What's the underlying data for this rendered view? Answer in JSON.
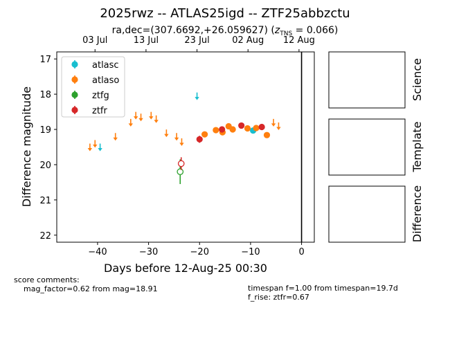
{
  "chart_data": {
    "type": "scatter",
    "title": "2025rwz -- ATLAS25igd -- ZTF25abbzctu",
    "subtitle_prefix": "ra,dec=(307.6692,+26.059627) (",
    "subtitle_math_base": "z",
    "subtitle_math_sub": "TNS",
    "subtitle_math_rest": " = 0.066)",
    "xlabel": "Days before 12-Aug-25 00:30",
    "ylabel": "Difference magnitude",
    "xlim": [
      -48,
      2.5
    ],
    "ylim": [
      22.2,
      16.8
    ],
    "x_ticks": [
      -40,
      -30,
      -20,
      -10,
      0
    ],
    "y_ticks": [
      17,
      18,
      19,
      20,
      21,
      22
    ],
    "top_axis_ticks": [
      {
        "x": -40.5,
        "label": "03 Jul"
      },
      {
        "x": -30.5,
        "label": "13 Jul"
      },
      {
        "x": -20.5,
        "label": "23 Jul"
      },
      {
        "x": -10.5,
        "label": "02 Aug"
      },
      {
        "x": -0.5,
        "label": "12 Aug"
      }
    ],
    "reference_line_x": 0,
    "legend": {
      "position": "upper-left",
      "entries": [
        "atlasc",
        "atlaso",
        "ztfg",
        "ztfr"
      ]
    },
    "series": [
      {
        "name": "atlasc",
        "color": "#17becf",
        "detections": [
          {
            "x": -9.5,
            "y": 19.03,
            "err": 0.05
          }
        ],
        "upper_limits": [
          {
            "x": -39.5,
            "y": 19.5
          },
          {
            "x": -20.5,
            "y": 18.05
          }
        ]
      },
      {
        "name": "atlaso",
        "color": "#ff7f0e",
        "detections": [
          {
            "x": -19.0,
            "y": 19.14,
            "err": 0.05
          },
          {
            "x": -16.8,
            "y": 19.02,
            "err": 0.05
          },
          {
            "x": -15.5,
            "y": 19.08,
            "err": 0.05
          },
          {
            "x": -14.3,
            "y": 18.91,
            "err": 0.05
          },
          {
            "x": -13.5,
            "y": 19.0,
            "err": 0.05
          },
          {
            "x": -10.6,
            "y": 18.97,
            "err": 0.05
          },
          {
            "x": -8.9,
            "y": 18.96,
            "err": 0.05
          },
          {
            "x": -6.8,
            "y": 19.16,
            "err": 0.05
          }
        ],
        "upper_limits": [
          {
            "x": -41.5,
            "y": 19.5
          },
          {
            "x": -40.5,
            "y": 19.4
          },
          {
            "x": -36.5,
            "y": 19.2
          },
          {
            "x": -33.5,
            "y": 18.8
          },
          {
            "x": -32.5,
            "y": 18.6
          },
          {
            "x": -31.5,
            "y": 18.65
          },
          {
            "x": -29.5,
            "y": 18.6
          },
          {
            "x": -28.5,
            "y": 18.7
          },
          {
            "x": -26.5,
            "y": 19.1
          },
          {
            "x": -24.5,
            "y": 19.2
          },
          {
            "x": -23.5,
            "y": 19.35
          },
          {
            "x": -5.5,
            "y": 18.8
          },
          {
            "x": -4.5,
            "y": 18.9
          }
        ]
      },
      {
        "name": "ztfg",
        "color": "#2ca02c",
        "detections": [
          {
            "x": -23.8,
            "y": 20.2,
            "err": 0.35,
            "open": true
          }
        ],
        "upper_limits": []
      },
      {
        "name": "ztfr",
        "color": "#d62728",
        "detections": [
          {
            "x": -23.6,
            "y": 19.97,
            "err": 0.18,
            "open": true
          },
          {
            "x": -20.0,
            "y": 19.28,
            "err": 0.1
          },
          {
            "x": -15.6,
            "y": 19.0,
            "err": 0.06
          },
          {
            "x": -11.8,
            "y": 18.89,
            "err": 0.06
          },
          {
            "x": -7.8,
            "y": 18.93,
            "err": 0.06
          }
        ],
        "upper_limits": []
      }
    ]
  },
  "panels": [
    {
      "label": "Science"
    },
    {
      "label": "Template"
    },
    {
      "label": "Difference"
    }
  ],
  "comments": {
    "left": "score comments:\n    mag_factor=0.62 from mag=18.91",
    "right": "timespan f=1.00 from timespan=19.7d\nf_rise: ztfr=0.67"
  }
}
